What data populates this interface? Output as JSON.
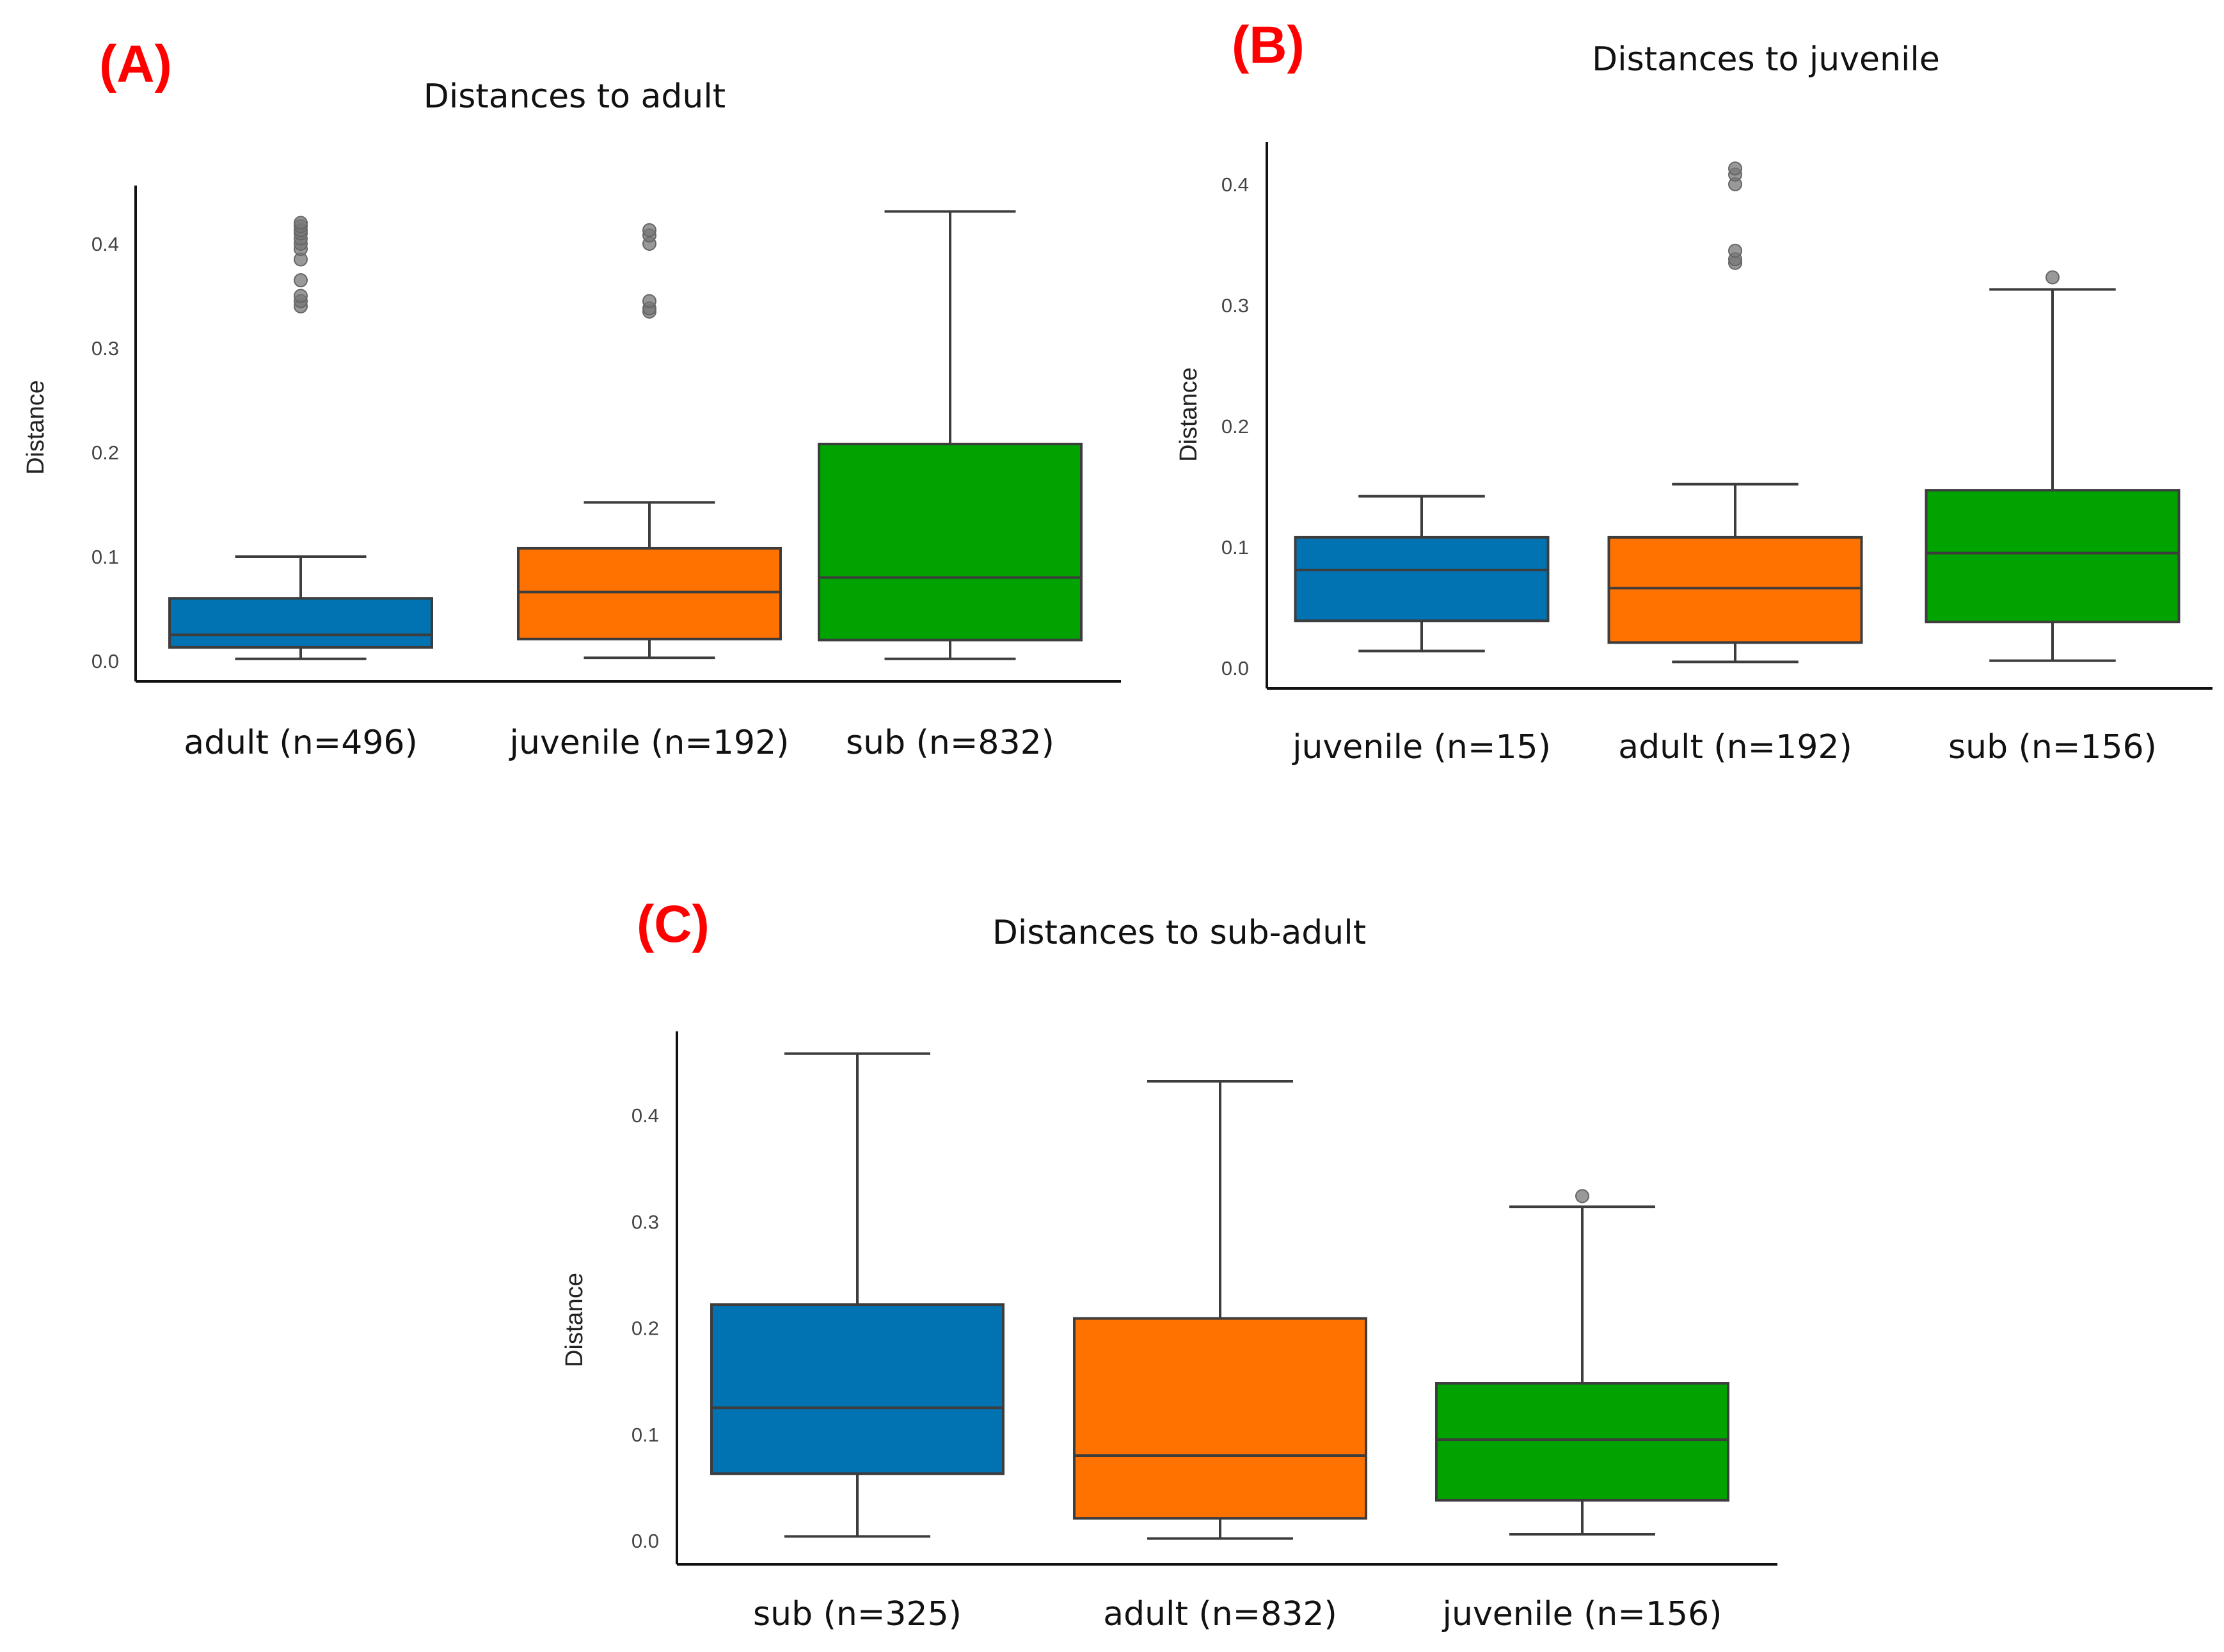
{
  "chart_data": [
    {
      "type": "box",
      "panel_label": "(A)",
      "title": "Distances to adult",
      "ylabel": "Distance",
      "ylim": [
        0.0,
        0.45
      ],
      "yticks": [
        "0.0",
        "0.1",
        "0.2",
        "0.3",
        "0.4"
      ],
      "grid": false,
      "categories": [
        "adult (n=496)",
        "juvenile (n=192)",
        "sub (n=832)"
      ],
      "colors": [
        "#0173b2",
        "#ff7200",
        "#00a300"
      ],
      "boxes": [
        {
          "whisker_low": 0.002,
          "q1": 0.013,
          "median": 0.025,
          "q3": 0.06,
          "whisker_high": 0.1,
          "outliers": [
            0.34,
            0.345,
            0.35,
            0.365,
            0.385,
            0.395,
            0.4,
            0.405,
            0.41,
            0.413,
            0.417,
            0.42
          ]
        },
        {
          "whisker_low": 0.003,
          "q1": 0.021,
          "median": 0.066,
          "q3": 0.108,
          "whisker_high": 0.152,
          "outliers": [
            0.335,
            0.338,
            0.345,
            0.4,
            0.408,
            0.413
          ]
        },
        {
          "whisker_low": 0.002,
          "q1": 0.02,
          "median": 0.08,
          "q3": 0.208,
          "whisker_high": 0.431,
          "outliers": []
        }
      ]
    },
    {
      "type": "box",
      "panel_label": "(B)",
      "title": "Distances to juvenile",
      "ylabel": "Distance",
      "ylim": [
        0.0,
        0.45
      ],
      "yticks": [
        "0.0",
        "0.1",
        "0.2",
        "0.3",
        "0.4"
      ],
      "grid": false,
      "categories": [
        "juvenile (n=15)",
        "adult (n=192)",
        "sub (n=156)"
      ],
      "colors": [
        "#0173b2",
        "#ff7200",
        "#00a300"
      ],
      "boxes": [
        {
          "whisker_low": 0.014,
          "q1": 0.039,
          "median": 0.081,
          "q3": 0.108,
          "whisker_high": 0.142,
          "outliers": []
        },
        {
          "whisker_low": 0.005,
          "q1": 0.021,
          "median": 0.066,
          "q3": 0.108,
          "whisker_high": 0.152,
          "outliers": [
            0.335,
            0.338,
            0.345,
            0.4,
            0.408,
            0.413
          ]
        },
        {
          "whisker_low": 0.006,
          "q1": 0.038,
          "median": 0.095,
          "q3": 0.147,
          "whisker_high": 0.313,
          "outliers": [
            0.323
          ]
        }
      ]
    },
    {
      "type": "box",
      "panel_label": "(C)",
      "title": "Distances to sub-adult",
      "ylabel": "Distance",
      "ylim": [
        0.0,
        0.45
      ],
      "yticks": [
        "0.0",
        "0.1",
        "0.2",
        "0.3",
        "0.4"
      ],
      "grid": false,
      "categories": [
        "sub (n=325)",
        "adult (n=832)",
        "juvenile (n=156)"
      ],
      "colors": [
        "#0173b2",
        "#ff7200",
        "#00a300"
      ],
      "boxes": [
        {
          "whisker_low": 0.004,
          "q1": 0.063,
          "median": 0.125,
          "q3": 0.222,
          "whisker_high": 0.458,
          "outliers": []
        },
        {
          "whisker_low": 0.002,
          "q1": 0.021,
          "median": 0.08,
          "q3": 0.209,
          "whisker_high": 0.432,
          "outliers": []
        },
        {
          "whisker_low": 0.006,
          "q1": 0.038,
          "median": 0.095,
          "q3": 0.148,
          "whisker_high": 0.314,
          "outliers": [
            0.324
          ]
        }
      ]
    }
  ]
}
